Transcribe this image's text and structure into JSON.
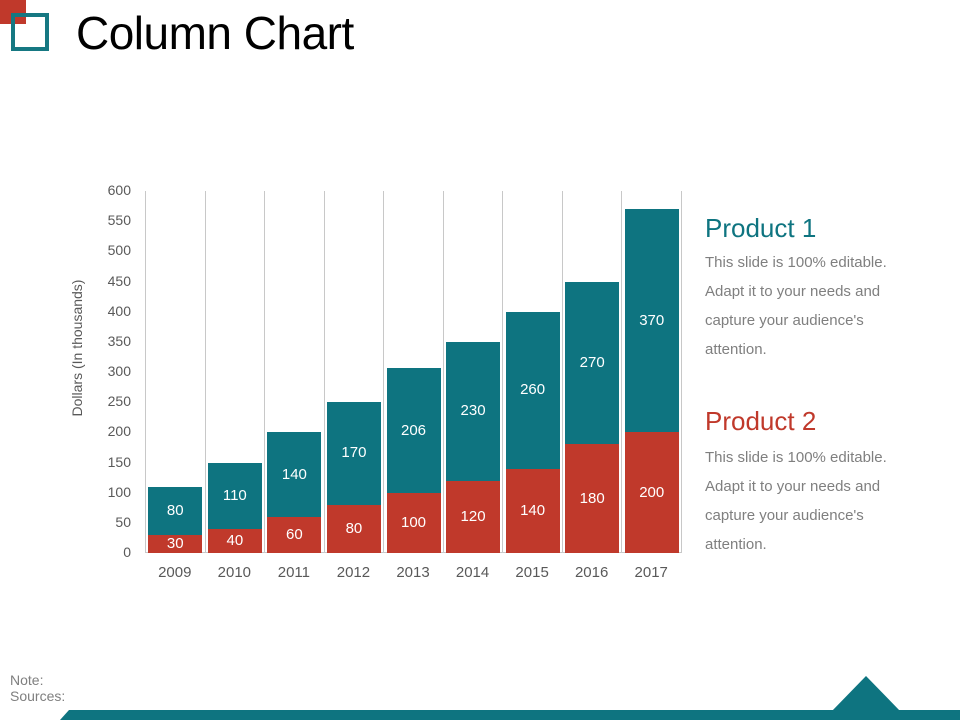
{
  "header": {
    "title": "Column Chart"
  },
  "colors": {
    "product1": "#0e7480",
    "product2": "#c0392b",
    "text_gray": "#7f7f7f",
    "axis_text": "#595959"
  },
  "chart_data": {
    "type": "bar",
    "stacked": true,
    "title": "Column Chart",
    "xlabel": "",
    "ylabel": "Dollars (In thousands)",
    "ylim": [
      0,
      600
    ],
    "yticks": [
      0,
      50,
      100,
      150,
      200,
      250,
      300,
      350,
      400,
      450,
      500,
      550,
      600
    ],
    "categories": [
      "2009",
      "2010",
      "2011",
      "2012",
      "2013",
      "2014",
      "2015",
      "2016",
      "2017"
    ],
    "series": [
      {
        "name": "Product 2",
        "color": "#c0392b",
        "values": [
          30,
          40,
          60,
          80,
          100,
          120,
          140,
          180,
          200
        ]
      },
      {
        "name": "Product 1",
        "color": "#0e7480",
        "values": [
          80,
          110,
          140,
          170,
          206,
          230,
          260,
          270,
          370
        ]
      }
    ],
    "grid": "vertical category separators",
    "legend_position": "right"
  },
  "legend": {
    "product1": {
      "title": "Product 1",
      "lines": [
        "This slide is 100% editable.",
        "Adapt it to your needs and",
        "capture your audience's",
        "attention."
      ]
    },
    "product2": {
      "title": "Product 2",
      "lines": [
        "This slide is 100% editable.",
        "Adapt it to your needs and",
        "capture your audience's",
        "attention."
      ]
    }
  },
  "footer": {
    "note": "Note:",
    "sources": "Sources:"
  }
}
